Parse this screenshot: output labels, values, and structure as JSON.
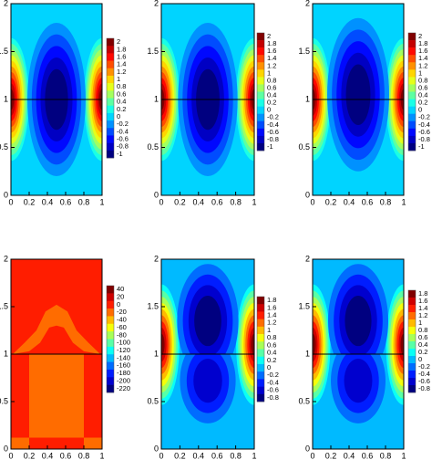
{
  "chart_data": [
    {
      "type": "contour",
      "xlim": [
        0,
        1
      ],
      "ylim": [
        0,
        2
      ],
      "xticks": [
        0,
        0.2,
        0.4,
        0.6,
        0.8,
        1
      ],
      "yticks": [
        0,
        0.5,
        1,
        1.5,
        2
      ],
      "colormap": "jet",
      "levels": [
        2,
        1.8,
        1.6,
        1.4,
        1.2,
        1,
        0.8,
        0.6,
        0.4,
        0.2,
        0,
        -0.2,
        -0.4,
        -0.6,
        -0.8,
        -1
      ]
    },
    {
      "type": "contour",
      "xlim": [
        0,
        1
      ],
      "ylim": [
        0,
        2
      ],
      "xticks": [
        0,
        0.2,
        0.4,
        0.6,
        0.8,
        1
      ],
      "yticks": [
        0,
        0.5,
        1,
        1.5,
        2
      ],
      "colormap": "jet",
      "levels": [
        2,
        1.8,
        1.6,
        1.4,
        1.2,
        1,
        0.8,
        0.6,
        0.4,
        0.2,
        0,
        -0.2,
        -0.4,
        -0.6,
        -0.8,
        -1
      ]
    },
    {
      "type": "contour",
      "xlim": [
        0,
        1
      ],
      "ylim": [
        0,
        2
      ],
      "xticks": [
        0,
        0.2,
        0.4,
        0.6,
        0.8,
        1
      ],
      "yticks": [
        0,
        0.5,
        1,
        1.5,
        2
      ],
      "colormap": "jet",
      "levels": [
        2,
        1.8,
        1.6,
        1.4,
        1.2,
        1,
        0.8,
        0.6,
        0.4,
        0.2,
        0,
        -0.2,
        -0.4,
        -0.6,
        -0.8,
        -1
      ]
    },
    {
      "type": "contour",
      "xlim": [
        0,
        1
      ],
      "ylim": [
        0,
        2
      ],
      "xticks": [
        0,
        0.2,
        0.4,
        0.6,
        0.8,
        1
      ],
      "yticks": [
        0,
        0.5,
        1,
        1.5,
        2
      ],
      "colormap": "jet",
      "levels": [
        40,
        20,
        0,
        -20,
        -40,
        -60,
        -80,
        -100,
        -120,
        -140,
        -160,
        -180,
        -200,
        -220
      ]
    },
    {
      "type": "contour",
      "xlim": [
        0,
        1
      ],
      "ylim": [
        0,
        2
      ],
      "xticks": [
        0,
        0.2,
        0.4,
        0.6,
        0.8,
        1
      ],
      "yticks": [
        0,
        0.5,
        1,
        1.5,
        2
      ],
      "colormap": "jet",
      "levels": [
        1.8,
        1.6,
        1.4,
        1.2,
        1,
        0.8,
        0.6,
        0.4,
        0.2,
        0,
        -0.2,
        -0.4,
        -0.6,
        -0.8
      ]
    },
    {
      "type": "contour",
      "xlim": [
        0,
        1
      ],
      "ylim": [
        0,
        2
      ],
      "xticks": [
        0,
        0.2,
        0.4,
        0.6,
        0.8,
        1
      ],
      "yticks": [
        0,
        0.5,
        1,
        1.5,
        2
      ],
      "colormap": "jet",
      "levels": [
        1.8,
        1.6,
        1.4,
        1.2,
        1,
        0.8,
        0.6,
        0.4,
        0.2,
        0,
        -0.2,
        -0.4,
        -0.6,
        -0.8
      ]
    }
  ]
}
